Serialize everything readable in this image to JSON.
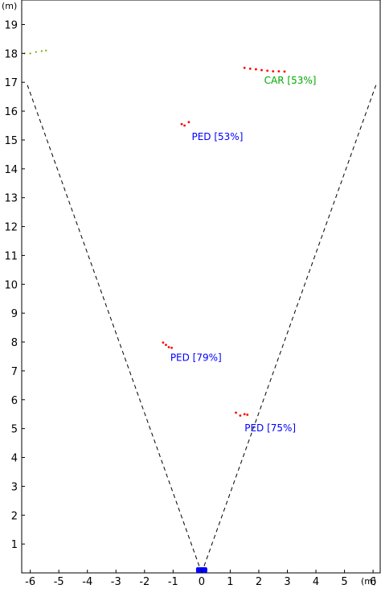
{
  "chart_data": {
    "type": "scatter",
    "x_unit": "(m)",
    "y_unit": "(m)",
    "xlim": [
      -6.3,
      6.25
    ],
    "ylim": [
      0,
      19.85
    ],
    "x_ticks": [
      -6,
      -5,
      -4,
      -3,
      -2,
      -1,
      0,
      1,
      2,
      3,
      4,
      5,
      6
    ],
    "y_ticks": [
      1,
      2,
      3,
      4,
      5,
      6,
      7,
      8,
      9,
      10,
      11,
      12,
      13,
      14,
      15,
      16,
      17,
      18,
      19
    ],
    "fov": {
      "origin": [
        0,
        0
      ],
      "left_end": [
        -6.1,
        16.9
      ],
      "right_end": [
        6.1,
        16.9
      ],
      "style": "dashed",
      "color": "#000000"
    },
    "sensor": {
      "x": 0,
      "y": 0.1,
      "color": "#0000ff"
    },
    "detections": [
      {
        "label": "CAR [53%]",
        "label_pos": [
          3.1,
          16.95
        ],
        "label_color": "#00aa00",
        "points_color": "#ff0000",
        "points": [
          [
            1.5,
            17.5
          ],
          [
            1.7,
            17.47
          ],
          [
            1.9,
            17.45
          ],
          [
            2.1,
            17.42
          ],
          [
            2.3,
            17.4
          ],
          [
            2.5,
            17.38
          ],
          [
            2.7,
            17.38
          ],
          [
            2.9,
            17.37
          ]
        ]
      },
      {
        "label": "PED [53%]",
        "label_pos": [
          0.55,
          15.0
        ],
        "label_color": "#0000ff",
        "points_color": "#ff0000",
        "points": [
          [
            -0.7,
            15.55
          ],
          [
            -0.6,
            15.5
          ],
          [
            -0.45,
            15.62
          ]
        ]
      },
      {
        "label": "PED [79%]",
        "label_pos": [
          -0.2,
          7.35
        ],
        "label_color": "#0000ff",
        "points_color": "#ff0000",
        "points": [
          [
            -1.35,
            7.98
          ],
          [
            -1.25,
            7.9
          ],
          [
            -1.15,
            7.82
          ],
          [
            -1.05,
            7.8
          ]
        ]
      },
      {
        "label": "PED [75%]",
        "label_pos": [
          2.4,
          4.9
        ],
        "label_color": "#0000ff",
        "points_color": "#ff0000",
        "points": [
          [
            1.2,
            5.55
          ],
          [
            1.35,
            5.45
          ],
          [
            1.5,
            5.5
          ],
          [
            1.6,
            5.48
          ]
        ]
      }
    ],
    "unlabeled_track": {
      "color": "#77aa00",
      "points": [
        [
          -6.2,
          18.0
        ],
        [
          -6.0,
          18.0
        ],
        [
          -5.8,
          18.05
        ],
        [
          -5.6,
          18.08
        ],
        [
          -5.45,
          18.1
        ]
      ]
    }
  }
}
